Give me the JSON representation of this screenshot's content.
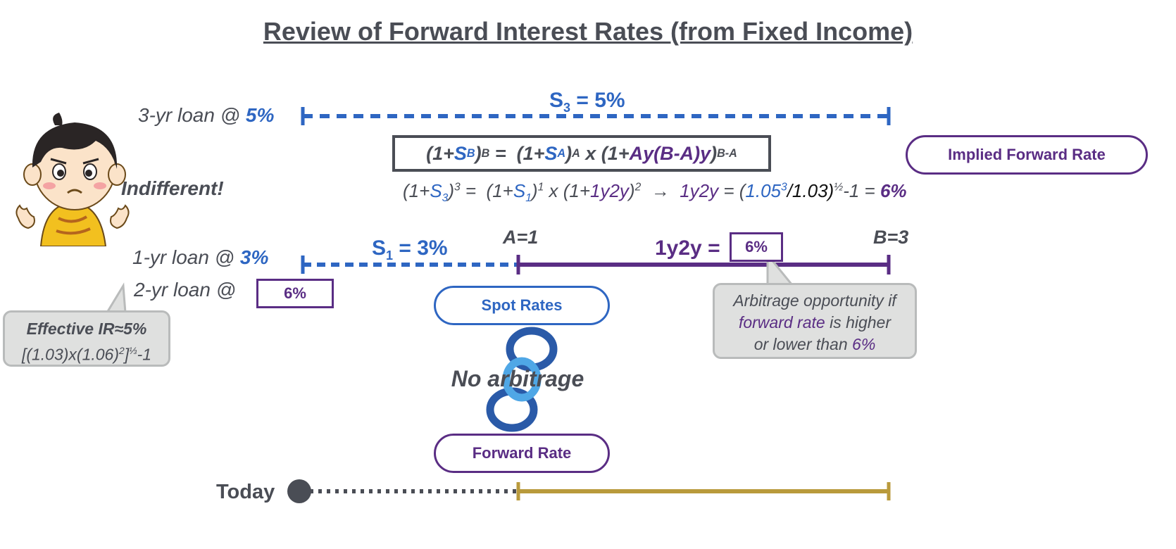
{
  "title": "Review of Forward Interest Rates (from Fixed Income)",
  "loans": {
    "three_year": {
      "label": "3-yr loan @ ",
      "rate": "5%"
    },
    "one_year": {
      "label": "1-yr loan @ ",
      "rate": "3%"
    },
    "two_year": {
      "label": "2-yr loan @ ",
      "rate": "6%"
    }
  },
  "indifferent": "Indifferent!",
  "s3": {
    "sym": "S",
    "sub": "3",
    "eq": " = 5%"
  },
  "s1": {
    "sym": "S",
    "sub": "1",
    "eq": " = 3%"
  },
  "formula": {
    "p1": "(1+",
    "sb": "S",
    "sb_sub": "B",
    "p2": ")",
    "sup_b": "B",
    "p3": " =  (1+",
    "sa": "S",
    "sa_sub": "A",
    "p4": ")",
    "sup_a": "A",
    "p5": " x (1+",
    "ay": "Ay(B-A)y",
    "p6": ")",
    "sup_ba": "B-A"
  },
  "example": {
    "e1": "(1+",
    "s3": "S",
    "s3_sub": "3",
    "e2": ")",
    "e2_sup": "3",
    "e3": " =  (1+",
    "s1": "S",
    "s1_sub": "1",
    "e4": ")",
    "e4_sup": "1",
    "e5": " x (1+",
    "f": "1y2y",
    "e6": ")",
    "e6_sup": "2",
    "arrow": "  →  ",
    "f2": "1y2y",
    "e7": " = (",
    "num": "1.05",
    "num_sup": "3",
    "den": "/1.03)",
    "den_sup": "½",
    "e8": "-1 = ",
    "res": "6%"
  },
  "labels": {
    "a": "A=1",
    "b": "B=3",
    "fwd_label": "1y2y = ",
    "fwd_value": "6%",
    "today": "Today"
  },
  "pills": {
    "implied": "Implied Forward Rate",
    "spot": "Spot Rates",
    "forward": "Forward Rate"
  },
  "no_arbitrage": "No arbitrage",
  "effective": {
    "line1": "Effective IR≈5%",
    "l2a": "[(1.03)x(1.06)",
    "l2b": "2",
    "l2c": "]",
    "l2d": "⅓",
    "l2e": "-1"
  },
  "arb_bubble": {
    "line1": "Arbitrage opportunity if",
    "hl": "forward rate",
    "line2": " is higher",
    "line3a": "or lower than ",
    "line3b": "6%"
  },
  "colors": {
    "blue": "#2e66c2",
    "purple": "#5a2d84",
    "gold": "#b99a3c",
    "gray": "#4a4d55"
  }
}
